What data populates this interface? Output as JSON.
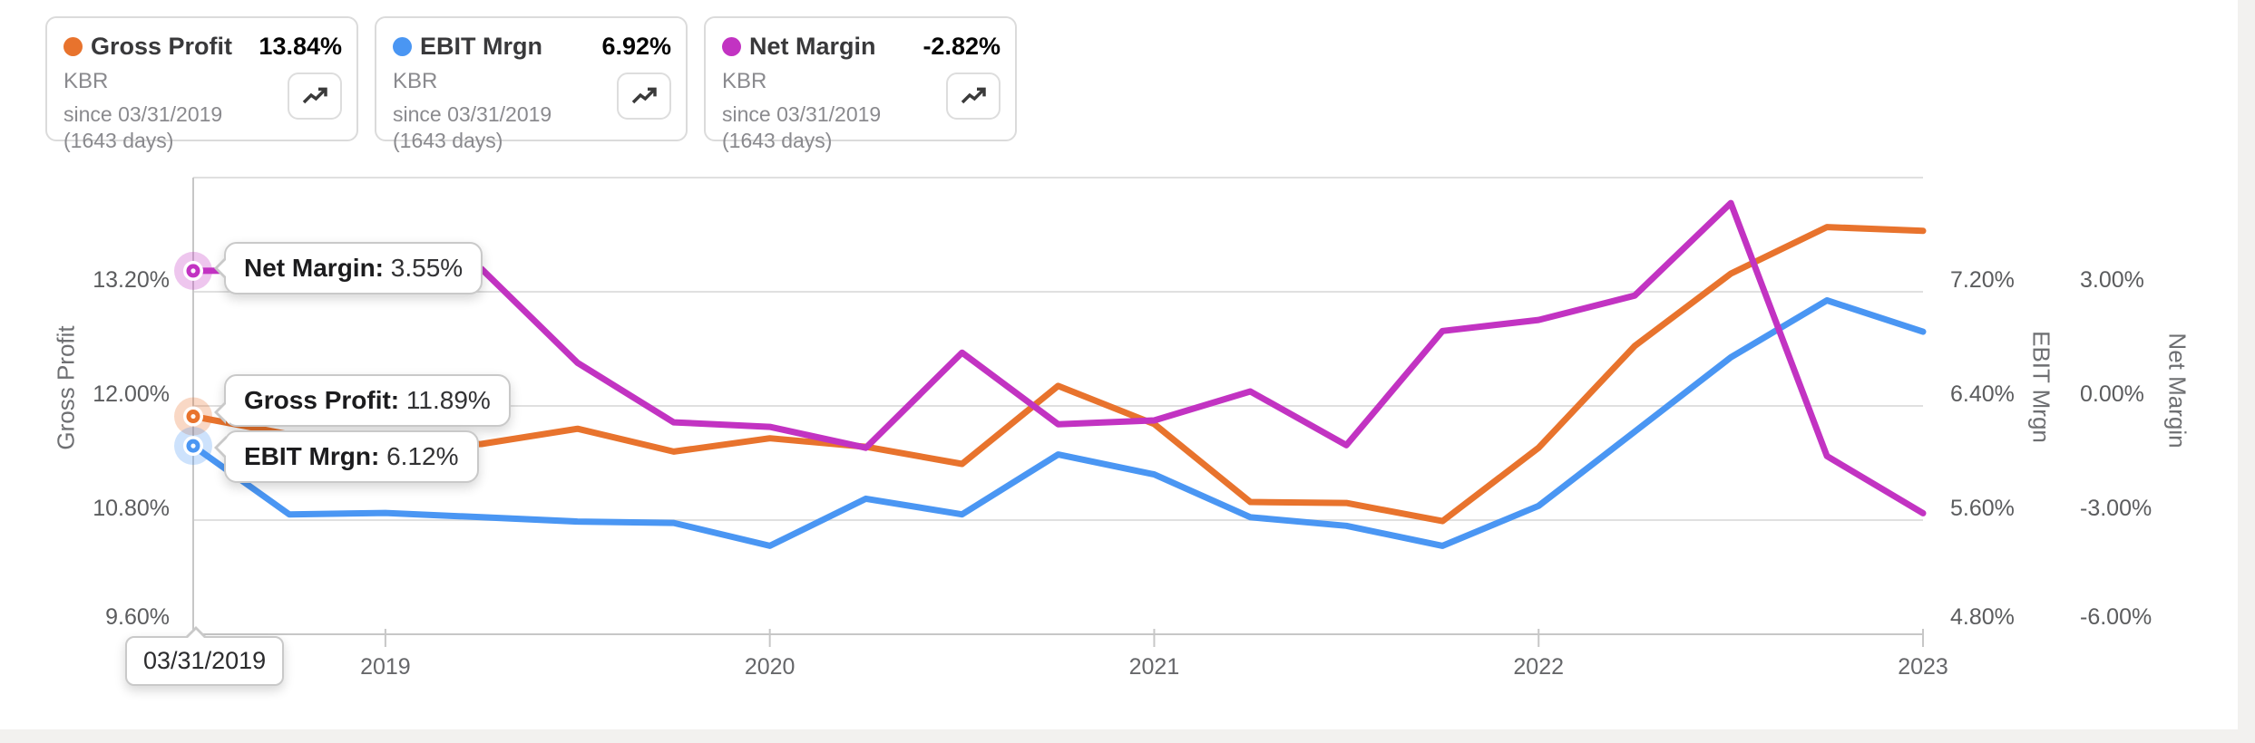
{
  "page": {
    "background": "#ffffff",
    "chrome_strip_color": "#F2F1EF"
  },
  "cards": [
    {
      "label": "Gross Profit",
      "value": "13.84%",
      "ticker": "KBR",
      "since": "since 03/31/2019",
      "days": "(1643 days)",
      "color": "#E8732D"
    },
    {
      "label": "EBIT Mrgn",
      "value": "6.92%",
      "ticker": "KBR",
      "since": "since 03/31/2019",
      "days": "(1643 days)",
      "color": "#4A96F3"
    },
    {
      "label": "Net Margin",
      "value": "-2.82%",
      "ticker": "KBR",
      "since": "since 03/31/2019",
      "days": "(1643 days)",
      "color": "#C233C2"
    }
  ],
  "tooltips": {
    "net_margin": {
      "label": "Net Margin:",
      "value": "3.55%"
    },
    "gross_profit": {
      "label": "Gross Profit:",
      "value": "11.89%"
    },
    "ebit": {
      "label": "EBIT Mrgn:",
      "value": "6.12%"
    },
    "date": "03/31/2019"
  },
  "chart_data": {
    "type": "line",
    "x": [
      "03/31/2019",
      "06/30/2019",
      "09/30/2019",
      "12/31/2019",
      "03/31/2020",
      "06/30/2020",
      "09/30/2020",
      "12/31/2020",
      "03/31/2021",
      "06/30/2021",
      "09/30/2021",
      "12/31/2021",
      "03/31/2022",
      "06/30/2022",
      "09/30/2022",
      "12/31/2022",
      "03/31/2023",
      "06/30/2023",
      "09/30/2023"
    ],
    "x_tick_labels": [
      "2019",
      "2020",
      "2021",
      "2022",
      "2023"
    ],
    "x_tick_indices": [
      2,
      6,
      10,
      14,
      18
    ],
    "grid": true,
    "series": [
      {
        "name": "Gross Profit",
        "color": "#E8732D",
        "axis": "gross_profit",
        "values": [
          11.89,
          11.7,
          11.58,
          11.6,
          11.76,
          11.52,
          11.66,
          11.57,
          11.39,
          12.21,
          11.81,
          10.99,
          10.98,
          10.79,
          11.56,
          12.63,
          13.39,
          13.88,
          13.84
        ]
      },
      {
        "name": "EBIT Mrgn",
        "color": "#4A96F3",
        "axis": "ebit",
        "values": [
          6.12,
          5.64,
          5.65,
          5.62,
          5.59,
          5.58,
          5.42,
          5.75,
          5.64,
          6.06,
          5.92,
          5.62,
          5.56,
          5.42,
          5.7,
          6.22,
          6.74,
          7.14,
          6.92
        ]
      },
      {
        "name": "Net Margin",
        "color": "#C233C2",
        "axis": "net_margin",
        "values": [
          3.55,
          3.56,
          3.58,
          3.6,
          1.13,
          -0.43,
          -0.55,
          -1.1,
          1.4,
          -0.48,
          -0.38,
          0.38,
          -1.03,
          1.97,
          2.26,
          2.9,
          5.33,
          -1.32,
          -2.82
        ]
      }
    ],
    "axes": {
      "gross_profit": {
        "title": "Gross Profit",
        "side": "left",
        "min": 9.6,
        "max": 14.4,
        "tick_values": [
          13.2,
          12.0,
          10.8,
          9.6
        ],
        "tick_labels": [
          "13.20%",
          "12.00%",
          "10.80%",
          "9.60%"
        ]
      },
      "ebit": {
        "title": "EBIT Mrgn",
        "side": "right1",
        "min": 4.8,
        "max": 8.0,
        "tick_values": [
          7.2,
          6.4,
          5.6,
          4.8
        ],
        "tick_labels": [
          "7.20%",
          "6.40%",
          "5.60%",
          "4.80%"
        ]
      },
      "net_margin": {
        "title": "Net Margin",
        "side": "right2",
        "min": -6.0,
        "max": 6.0,
        "tick_values": [
          3.0,
          0.0,
          -3.0,
          -6.0
        ],
        "tick_labels": [
          "3.00%",
          "0.00%",
          "-3.00%",
          "-6.00%"
        ]
      }
    },
    "highlighted_point": {
      "index": 0,
      "date": "03/31/2019"
    },
    "colors": {
      "grid": "#E0E0E0",
      "axis_line": "#C7C7C7",
      "tick_label": "#5B5C5E"
    }
  }
}
